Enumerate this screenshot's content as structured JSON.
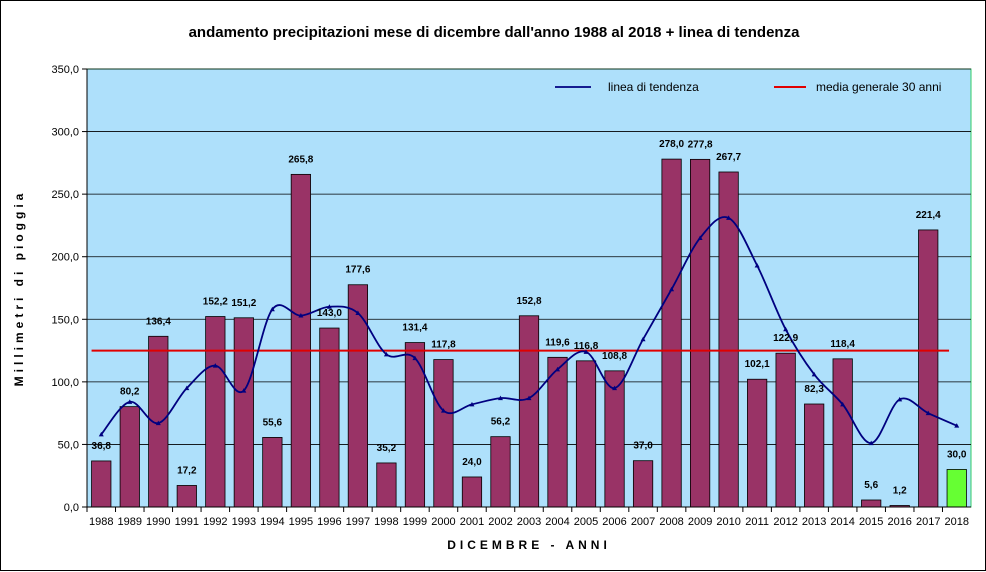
{
  "chart_data": {
    "type": "bar",
    "title": "andamento precipitazioni mese di dicembre dall'anno 1988 al 2018 + linea di tendenza",
    "xlabel": "DICEMBRE - ANNI",
    "ylabel": "Millimetri di pioggia",
    "ylim": [
      0,
      350
    ],
    "yticks": [
      "0,0",
      "50,0",
      "100,0",
      "150,0",
      "200,0",
      "250,0",
      "300,0",
      "350,0"
    ],
    "ytick_values": [
      0,
      50,
      100,
      150,
      200,
      250,
      300,
      350
    ],
    "grid": true,
    "legend_position": "top-right",
    "categories": [
      "1988",
      "1989",
      "1990",
      "1991",
      "1992",
      "1993",
      "1994",
      "1995",
      "1996",
      "1997",
      "1998",
      "1999",
      "2000",
      "2001",
      "2002",
      "2003",
      "2004",
      "2005",
      "2006",
      "2007",
      "2008",
      "2009",
      "2010",
      "2011",
      "2012",
      "2013",
      "2014",
      "2015",
      "2016",
      "2017",
      "2018"
    ],
    "values": [
      36.8,
      80.2,
      136.4,
      17.2,
      152.2,
      151.2,
      55.6,
      265.8,
      143.0,
      177.6,
      35.2,
      131.4,
      117.8,
      24.0,
      56.2,
      152.8,
      119.6,
      116.8,
      108.8,
      37.0,
      278.0,
      277.8,
      267.7,
      102.1,
      122.9,
      82.3,
      118.4,
      5.6,
      1.2,
      221.4,
      30.0
    ],
    "value_labels": [
      "36,8",
      "80,2",
      "136,4",
      "17,2",
      "152,2",
      "151,2",
      "55,6",
      "265,8",
      "143,0",
      "177,6",
      "35,2",
      "131,4",
      "117,8",
      "24,0",
      "56,2",
      "152,8",
      "119,6",
      "116,8",
      "108,8",
      "37,0",
      "278,0",
      "277,8",
      "267,7",
      "102,1",
      "122,9",
      "82,3",
      "118,4",
      "5,6",
      "1,2",
      "221,4",
      "30,0"
    ],
    "trend": {
      "name": "linea di tendenza",
      "values": [
        58,
        84,
        67,
        95,
        113,
        93,
        158,
        153,
        160,
        155,
        122,
        119,
        77,
        82,
        87,
        87,
        110,
        124,
        95,
        134,
        174,
        215,
        231,
        193,
        142,
        106,
        82,
        51,
        86,
        75,
        65
      ]
    },
    "mean_line": {
      "name": "media generale 30 anni",
      "value": 125
    },
    "colors": {
      "plot_bg": "#aee0fb",
      "bar": "#993366",
      "bar_highlight": "#66ff33",
      "trend": "#000080",
      "mean": "#e00000",
      "plot_border": "#33cc66"
    }
  }
}
